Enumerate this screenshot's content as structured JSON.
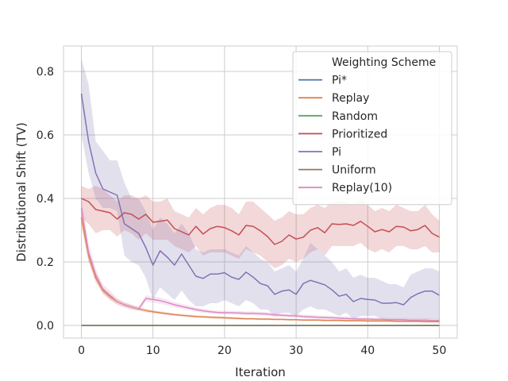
{
  "chart_data": {
    "type": "line",
    "title": "",
    "xlabel": "Iteration",
    "ylabel": "Distributional Shift (TV)",
    "xlim": [
      -2.5,
      52.5
    ],
    "ylim": [
      -0.04,
      0.88
    ],
    "xticks": [
      0,
      10,
      20,
      30,
      40,
      50
    ],
    "yticks": [
      0.0,
      0.2,
      0.4,
      0.6,
      0.8
    ],
    "xtick_labels": [
      "0",
      "10",
      "20",
      "30",
      "40",
      "50"
    ],
    "ytick_labels": [
      "0.0",
      "0.2",
      "0.4",
      "0.6",
      "0.8"
    ],
    "grid": true,
    "legend": {
      "title": "Weighting Scheme",
      "position": "top-right",
      "entries": [
        "Pi*",
        "Replay",
        "Random",
        "Prioritized",
        "Pi",
        "Uniform",
        "Replay(10)"
      ]
    },
    "x": [
      0,
      1,
      2,
      3,
      4,
      5,
      6,
      7,
      8,
      9,
      10,
      11,
      12,
      13,
      14,
      15,
      16,
      17,
      18,
      19,
      20,
      21,
      22,
      23,
      24,
      25,
      26,
      27,
      28,
      29,
      30,
      31,
      32,
      33,
      34,
      35,
      36,
      37,
      38,
      39,
      40,
      41,
      42,
      43,
      44,
      45,
      46,
      47,
      48,
      49,
      50
    ],
    "series": [
      {
        "name": "Pi*",
        "color": "#4c72b0",
        "values": [
          0,
          0,
          0,
          0,
          0,
          0,
          0,
          0,
          0,
          0,
          0,
          0,
          0,
          0,
          0,
          0,
          0,
          0,
          0,
          0,
          0,
          0,
          0,
          0,
          0,
          0,
          0,
          0,
          0,
          0,
          0,
          0,
          0,
          0,
          0,
          0,
          0,
          0,
          0,
          0,
          0,
          0,
          0,
          0,
          0,
          0,
          0,
          0,
          0,
          0,
          0
        ]
      },
      {
        "name": "Replay",
        "color": "#dd8452",
        "values": [
          0.34,
          0.22,
          0.15,
          0.11,
          0.09,
          0.075,
          0.065,
          0.058,
          0.052,
          0.047,
          0.043,
          0.04,
          0.037,
          0.034,
          0.032,
          0.03,
          0.028,
          0.027,
          0.026,
          0.025,
          0.024,
          0.023,
          0.022,
          0.021,
          0.021,
          0.02,
          0.02,
          0.019,
          0.019,
          0.018,
          0.018,
          0.017,
          0.017,
          0.017,
          0.016,
          0.016,
          0.016,
          0.015,
          0.015,
          0.015,
          0.014,
          0.014,
          0.014,
          0.014,
          0.013,
          0.013,
          0.013,
          0.013,
          0.012,
          0.012,
          0.012
        ]
      },
      {
        "name": "Random",
        "color": "#55a868",
        "values": [
          0,
          0,
          0,
          0,
          0,
          0,
          0,
          0,
          0,
          0,
          0,
          0,
          0,
          0,
          0,
          0,
          0,
          0,
          0,
          0,
          0,
          0,
          0,
          0,
          0,
          0,
          0,
          0,
          0,
          0,
          0,
          0,
          0,
          0,
          0,
          0,
          0,
          0,
          0,
          0,
          0,
          0,
          0,
          0,
          0,
          0,
          0,
          0,
          0,
          0,
          0
        ]
      },
      {
        "name": "Prioritized",
        "color": "#c44e52",
        "values": [
          0.4,
          0.39,
          0.365,
          0.36,
          0.355,
          0.335,
          0.355,
          0.35,
          0.335,
          0.35,
          0.325,
          0.328,
          0.332,
          0.305,
          0.295,
          0.285,
          0.312,
          0.288,
          0.305,
          0.312,
          0.308,
          0.298,
          0.285,
          0.315,
          0.312,
          0.298,
          0.28,
          0.255,
          0.265,
          0.285,
          0.272,
          0.278,
          0.3,
          0.308,
          0.292,
          0.32,
          0.318,
          0.32,
          0.315,
          0.328,
          0.312,
          0.295,
          0.302,
          0.295,
          0.312,
          0.31,
          0.298,
          0.302,
          0.315,
          0.29,
          0.278
        ]
      },
      {
        "name": "Pi",
        "color": "#8172b3",
        "values": [
          0.73,
          0.58,
          0.48,
          0.43,
          0.42,
          0.41,
          0.32,
          0.305,
          0.29,
          0.245,
          0.19,
          0.235,
          0.215,
          0.19,
          0.225,
          0.19,
          0.155,
          0.148,
          0.162,
          0.162,
          0.166,
          0.152,
          0.145,
          0.168,
          0.152,
          0.132,
          0.125,
          0.098,
          0.108,
          0.112,
          0.098,
          0.132,
          0.142,
          0.135,
          0.128,
          0.112,
          0.092,
          0.098,
          0.075,
          0.085,
          0.082,
          0.08,
          0.07,
          0.07,
          0.072,
          0.065,
          0.088,
          0.1,
          0.108,
          0.108,
          0.095
        ]
      },
      {
        "name": "Uniform",
        "color": "#937860",
        "values": [
          0,
          0,
          0,
          0,
          0,
          0,
          0,
          0,
          0,
          0,
          0,
          0,
          0,
          0,
          0,
          0,
          0,
          0,
          0,
          0,
          0,
          0,
          0,
          0,
          0,
          0,
          0,
          0,
          0,
          0,
          0,
          0,
          0,
          0,
          0,
          0,
          0,
          0,
          0,
          0,
          0,
          0,
          0,
          0,
          0,
          0,
          0,
          0,
          0,
          0,
          0
        ]
      },
      {
        "name": "Replay(10)",
        "color": "#da8bc3",
        "values": [
          0.37,
          0.23,
          0.16,
          0.115,
          0.095,
          0.075,
          0.065,
          0.058,
          0.052,
          0.085,
          0.082,
          0.078,
          0.072,
          0.065,
          0.06,
          0.055,
          0.05,
          0.046,
          0.043,
          0.041,
          0.04,
          0.04,
          0.039,
          0.038,
          0.038,
          0.037,
          0.036,
          0.033,
          0.032,
          0.031,
          0.03,
          0.028,
          0.027,
          0.026,
          0.025,
          0.024,
          0.023,
          0.022,
          0.021,
          0.02,
          0.02,
          0.019,
          0.019,
          0.018,
          0.018,
          0.018,
          0.017,
          0.017,
          0.017,
          0.016,
          0.016
        ]
      }
    ],
    "bands": [
      {
        "series": "Prioritized",
        "lower": [
          0.34,
          0.32,
          0.29,
          0.3,
          0.3,
          0.28,
          0.3,
          0.29,
          0.27,
          0.29,
          0.27,
          0.27,
          0.27,
          0.25,
          0.24,
          0.23,
          0.25,
          0.22,
          0.23,
          0.23,
          0.23,
          0.22,
          0.21,
          0.24,
          0.23,
          0.22,
          0.2,
          0.18,
          0.19,
          0.21,
          0.2,
          0.21,
          0.23,
          0.24,
          0.22,
          0.25,
          0.25,
          0.25,
          0.25,
          0.26,
          0.24,
          0.23,
          0.24,
          0.23,
          0.25,
          0.25,
          0.24,
          0.24,
          0.25,
          0.23,
          0.23
        ],
        "upper": [
          0.44,
          0.43,
          0.44,
          0.43,
          0.41,
          0.39,
          0.41,
          0.41,
          0.4,
          0.41,
          0.39,
          0.39,
          0.4,
          0.36,
          0.35,
          0.34,
          0.37,
          0.35,
          0.37,
          0.38,
          0.38,
          0.37,
          0.35,
          0.39,
          0.39,
          0.37,
          0.35,
          0.33,
          0.34,
          0.36,
          0.35,
          0.35,
          0.37,
          0.38,
          0.37,
          0.39,
          0.39,
          0.39,
          0.38,
          0.4,
          0.38,
          0.36,
          0.37,
          0.36,
          0.38,
          0.37,
          0.36,
          0.36,
          0.38,
          0.35,
          0.33
        ]
      },
      {
        "series": "Pi",
        "lower": [
          0.6,
          0.48,
          0.4,
          0.37,
          0.37,
          0.36,
          0.22,
          0.2,
          0.19,
          0.15,
          0.08,
          0.12,
          0.1,
          0.08,
          0.11,
          0.08,
          0.06,
          0.06,
          0.07,
          0.07,
          0.08,
          0.07,
          0.06,
          0.08,
          0.07,
          0.05,
          0.05,
          0.03,
          0.04,
          0.04,
          0.03,
          0.05,
          0.06,
          0.05,
          0.05,
          0.04,
          0.03,
          0.04,
          0.02,
          0.03,
          0.03,
          0.03,
          0.02,
          0.02,
          0.02,
          0.02,
          0.02,
          0.02,
          0.02,
          0.02,
          0.02
        ],
        "upper": [
          0.84,
          0.76,
          0.58,
          0.55,
          0.52,
          0.52,
          0.45,
          0.4,
          0.4,
          0.36,
          0.3,
          0.34,
          0.32,
          0.29,
          0.32,
          0.29,
          0.24,
          0.23,
          0.24,
          0.24,
          0.24,
          0.23,
          0.22,
          0.25,
          0.23,
          0.21,
          0.2,
          0.17,
          0.18,
          0.19,
          0.17,
          0.21,
          0.26,
          0.24,
          0.22,
          0.2,
          0.17,
          0.18,
          0.15,
          0.16,
          0.15,
          0.15,
          0.14,
          0.13,
          0.13,
          0.12,
          0.16,
          0.17,
          0.18,
          0.18,
          0.17
        ]
      },
      {
        "series": "Replay(10)",
        "lower": [
          0.33,
          0.2,
          0.14,
          0.1,
          0.08,
          0.065,
          0.056,
          0.05,
          0.045,
          0.075,
          0.072,
          0.068,
          0.063,
          0.057,
          0.052,
          0.048,
          0.043,
          0.04,
          0.037,
          0.035,
          0.034,
          0.034,
          0.033,
          0.032,
          0.032,
          0.031,
          0.03,
          0.027,
          0.026,
          0.025,
          0.024,
          0.022,
          0.021,
          0.02,
          0.019,
          0.018,
          0.017,
          0.016,
          0.015,
          0.014,
          0.014,
          0.013,
          0.013,
          0.012,
          0.012,
          0.012,
          0.011,
          0.011,
          0.011,
          0.01,
          0.01
        ],
        "upper": [
          0.41,
          0.26,
          0.18,
          0.13,
          0.11,
          0.085,
          0.074,
          0.066,
          0.059,
          0.095,
          0.092,
          0.088,
          0.081,
          0.073,
          0.068,
          0.062,
          0.057,
          0.052,
          0.049,
          0.047,
          0.046,
          0.046,
          0.045,
          0.044,
          0.044,
          0.043,
          0.042,
          0.039,
          0.038,
          0.037,
          0.036,
          0.034,
          0.033,
          0.032,
          0.031,
          0.03,
          0.029,
          0.028,
          0.027,
          0.026,
          0.026,
          0.025,
          0.025,
          0.024,
          0.024,
          0.024,
          0.023,
          0.023,
          0.023,
          0.022,
          0.022
        ]
      },
      {
        "series": "Replay",
        "lower": [
          0.31,
          0.2,
          0.135,
          0.1,
          0.08,
          0.067,
          0.058,
          0.051,
          0.046,
          0.041,
          0.038,
          0.035,
          0.032,
          0.03,
          0.028,
          0.026,
          0.024,
          0.023,
          0.022,
          0.021,
          0.02,
          0.019,
          0.018,
          0.018,
          0.018,
          0.017,
          0.017,
          0.016,
          0.016,
          0.015,
          0.015,
          0.014,
          0.014,
          0.014,
          0.013,
          0.013,
          0.013,
          0.012,
          0.012,
          0.012,
          0.011,
          0.011,
          0.011,
          0.011,
          0.01,
          0.01,
          0.01,
          0.01,
          0.009,
          0.009,
          0.009
        ],
        "upper": [
          0.37,
          0.24,
          0.165,
          0.12,
          0.1,
          0.083,
          0.072,
          0.065,
          0.058,
          0.053,
          0.048,
          0.045,
          0.042,
          0.038,
          0.036,
          0.034,
          0.032,
          0.031,
          0.03,
          0.029,
          0.028,
          0.027,
          0.026,
          0.024,
          0.024,
          0.023,
          0.023,
          0.022,
          0.022,
          0.021,
          0.021,
          0.02,
          0.02,
          0.02,
          0.019,
          0.019,
          0.019,
          0.018,
          0.018,
          0.018,
          0.017,
          0.017,
          0.017,
          0.017,
          0.016,
          0.016,
          0.016,
          0.016,
          0.015,
          0.015,
          0.015
        ]
      }
    ]
  }
}
